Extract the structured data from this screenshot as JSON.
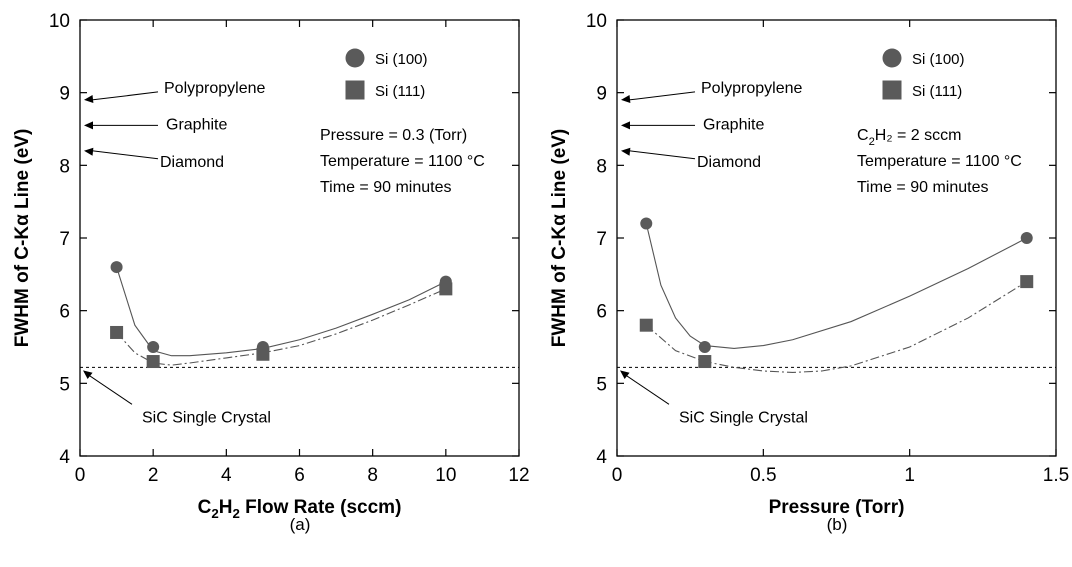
{
  "chart_data": [
    {
      "type": "scatter",
      "panel_label": "(a)",
      "xlabel": "C2H2 Flow Rate (sccm)",
      "xlabel_parts": {
        "pre": "C",
        "sub1": "2",
        "mid": "H",
        "sub2": "2",
        "post": " Flow Rate (sccm)"
      },
      "ylabel": "FWHM of C-Kα Line (eV)",
      "xlim": [
        0,
        12
      ],
      "ylim": [
        4,
        10
      ],
      "xticks": [
        0,
        2,
        4,
        6,
        8,
        10,
        12
      ],
      "yticks": [
        4,
        5,
        6,
        7,
        8,
        9,
        10
      ],
      "grid": false,
      "legend_position": "top-right",
      "series": [
        {
          "name": "Si (100)",
          "marker": "circle",
          "color": "#5a5a5a",
          "x": [
            1,
            2,
            5,
            10
          ],
          "y": [
            6.6,
            5.5,
            5.5,
            6.4
          ],
          "fit": {
            "style": "solid",
            "x": [
              1,
              1.5,
              2,
              2.5,
              3,
              4,
              5,
              6,
              7,
              8,
              9,
              10
            ],
            "y": [
              6.6,
              5.8,
              5.45,
              5.38,
              5.38,
              5.42,
              5.48,
              5.6,
              5.76,
              5.95,
              6.15,
              6.4
            ]
          }
        },
        {
          "name": "Si (111)",
          "marker": "square",
          "color": "#5a5a5a",
          "x": [
            1,
            2,
            5,
            10
          ],
          "y": [
            5.7,
            5.3,
            5.4,
            6.3
          ],
          "fit": {
            "style": "dashdot",
            "x": [
              1,
              1.5,
              2,
              2.5,
              3,
              4,
              5,
              6,
              7,
              8,
              9,
              10
            ],
            "y": [
              5.7,
              5.42,
              5.28,
              5.25,
              5.28,
              5.35,
              5.42,
              5.52,
              5.68,
              5.87,
              6.08,
              6.3
            ]
          }
        }
      ],
      "reference_line": {
        "y": 5.22,
        "label": "SiC  Single Crystal"
      },
      "reference_arrows": [
        {
          "label": "Polypropylene",
          "y": 8.9
        },
        {
          "label": "Graphite",
          "y": 8.55
        },
        {
          "label": "Diamond",
          "y": 8.2
        }
      ],
      "conditions": [
        {
          "pre": "Pressure = 0.3 (Torr)",
          "sub": "",
          "post": ""
        },
        {
          "pre": "Temperature = 1100 °C",
          "sub": "",
          "post": ""
        },
        {
          "pre": "Time = 90 minutes",
          "sub": "",
          "post": ""
        }
      ]
    },
    {
      "type": "scatter",
      "panel_label": "(b)",
      "xlabel": "Pressure  (Torr)",
      "xlabel_parts": {
        "pre": "Pressure  (Torr)",
        "sub1": "",
        "mid": "",
        "sub2": "",
        "post": ""
      },
      "ylabel": "FWHM of C-Kα Line (eV)",
      "xlim": [
        0,
        1.5
      ],
      "ylim": [
        4,
        10
      ],
      "xticks": [
        0,
        0.5,
        1,
        1.5
      ],
      "yticks": [
        4,
        5,
        6,
        7,
        8,
        9,
        10
      ],
      "grid": false,
      "legend_position": "top-right",
      "series": [
        {
          "name": "Si (100)",
          "marker": "circle",
          "color": "#5a5a5a",
          "x": [
            0.1,
            0.3,
            1.4
          ],
          "y": [
            7.2,
            5.5,
            7.0
          ],
          "fit": {
            "style": "solid",
            "x": [
              0.1,
              0.15,
              0.2,
              0.25,
              0.3,
              0.4,
              0.5,
              0.6,
              0.8,
              1.0,
              1.2,
              1.4
            ],
            "y": [
              7.2,
              6.35,
              5.9,
              5.65,
              5.52,
              5.48,
              5.52,
              5.6,
              5.85,
              6.2,
              6.58,
              7.0
            ]
          }
        },
        {
          "name": "Si (111)",
          "marker": "square",
          "color": "#5a5a5a",
          "x": [
            0.1,
            0.3,
            1.4
          ],
          "y": [
            5.8,
            5.3,
            6.4
          ],
          "fit": {
            "style": "dashdot",
            "x": [
              0.1,
              0.2,
              0.3,
              0.4,
              0.5,
              0.6,
              0.7,
              0.8,
              1.0,
              1.2,
              1.4
            ],
            "y": [
              5.8,
              5.45,
              5.3,
              5.22,
              5.17,
              5.15,
              5.17,
              5.24,
              5.5,
              5.9,
              6.4
            ]
          }
        }
      ],
      "reference_line": {
        "y": 5.22,
        "label": "SiC  Single Crystal"
      },
      "reference_arrows": [
        {
          "label": "Polypropylene",
          "y": 8.9
        },
        {
          "label": "Graphite",
          "y": 8.55
        },
        {
          "label": "Diamond",
          "y": 8.2
        }
      ],
      "conditions": [
        {
          "pre": "C",
          "sub": "2",
          "post": "H₂ = 2 sccm"
        },
        {
          "pre": "Temperature = 1100 °C",
          "sub": "",
          "post": ""
        },
        {
          "pre": "Time = 90 minutes",
          "sub": "",
          "post": ""
        }
      ]
    }
  ]
}
